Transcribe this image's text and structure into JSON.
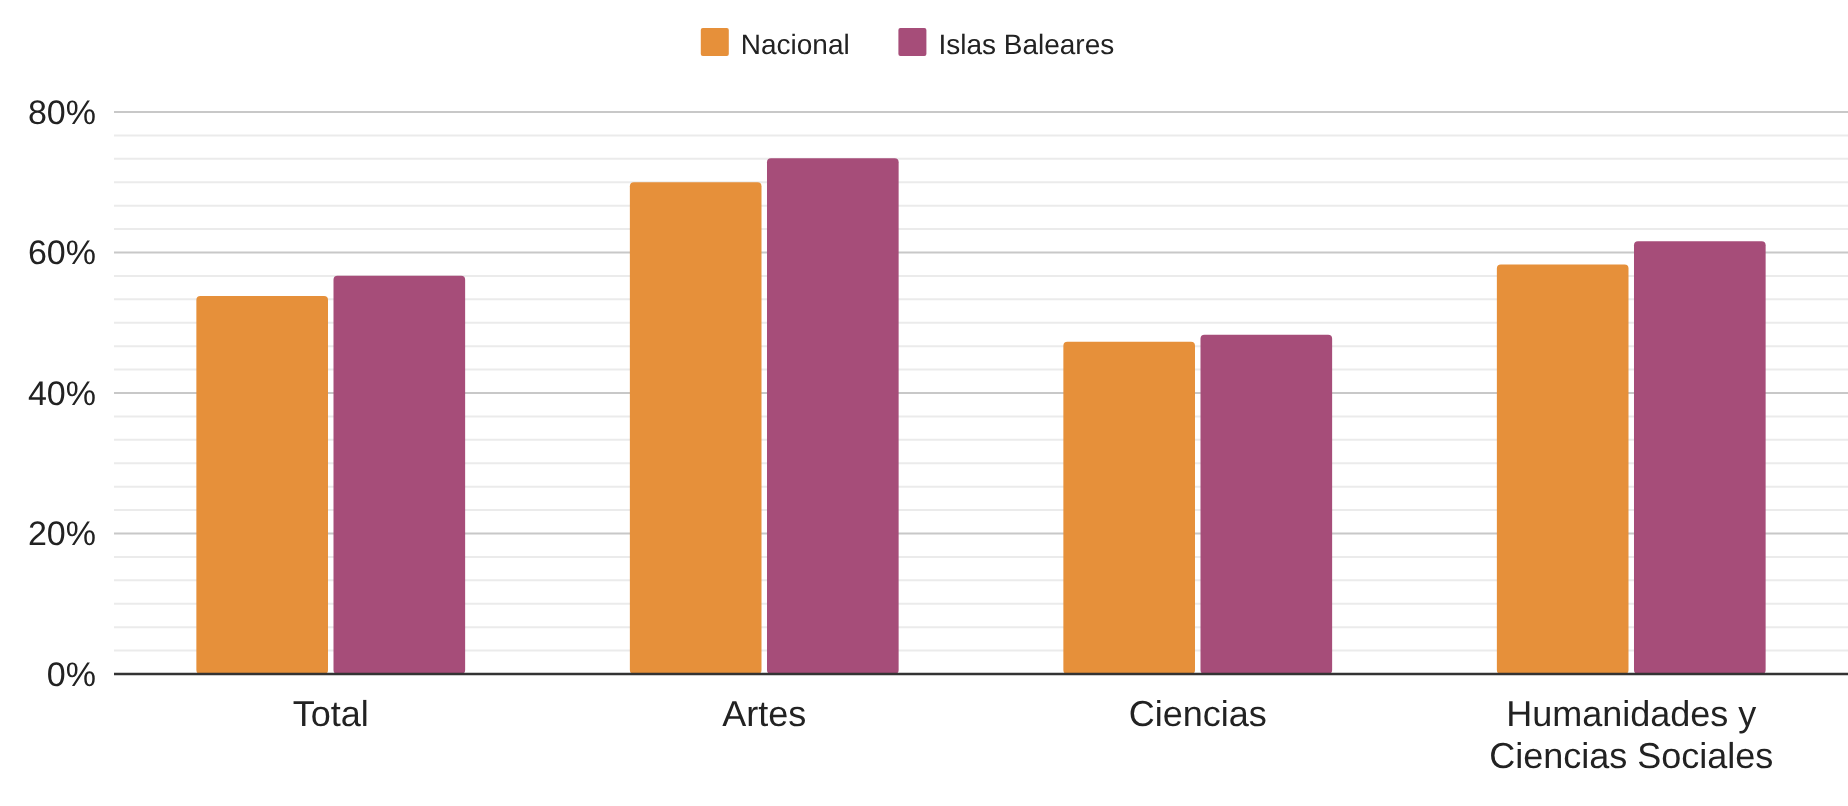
{
  "chart_data": {
    "type": "bar",
    "categories": [
      "Total",
      "Artes",
      "Ciencias",
      "Humanidades y Ciencias Sociales"
    ],
    "series": [
      {
        "name": "Nacional",
        "color": "#e6903a",
        "values": [
          53.8,
          70.0,
          47.3,
          58.3
        ]
      },
      {
        "name": "Islas Baleares",
        "color": "#a64d79",
        "values": [
          56.7,
          73.4,
          48.3,
          61.6
        ]
      }
    ],
    "ylim": [
      0,
      80
    ],
    "yticks": [
      {
        "value": 0,
        "label": "0%"
      },
      {
        "value": 20,
        "label": "20%"
      },
      {
        "value": 40,
        "label": "40%"
      },
      {
        "value": 60,
        "label": "60%"
      },
      {
        "value": 80,
        "label": "80%"
      }
    ],
    "grid": true,
    "legend": "top"
  }
}
